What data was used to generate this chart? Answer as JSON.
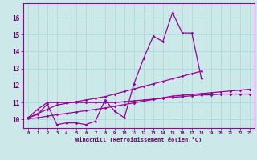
{
  "xlabel": "Windchill (Refroidissement éolien,°C)",
  "x": [
    0,
    1,
    2,
    3,
    4,
    5,
    6,
    7,
    8,
    9,
    10,
    11,
    12,
    13,
    14,
    15,
    16,
    17,
    18,
    19,
    20,
    21,
    22,
    23
  ],
  "line1_x": [
    0,
    1,
    2,
    3,
    4,
    5,
    6,
    7,
    8,
    9,
    10,
    11,
    12,
    13,
    14,
    15,
    16,
    17,
    18
  ],
  "line1_y": [
    10.1,
    10.3,
    10.9,
    9.7,
    9.8,
    9.8,
    9.7,
    9.9,
    11.15,
    10.5,
    10.1,
    12.1,
    13.6,
    14.9,
    14.6,
    16.3,
    15.1,
    15.1,
    12.4
  ],
  "line2_x": [
    0,
    1,
    2,
    3,
    4,
    5,
    6,
    7,
    8,
    9,
    10,
    11,
    12,
    13,
    14,
    15,
    16,
    17,
    18,
    19,
    20,
    21,
    22,
    23
  ],
  "line2_y": [
    10.1,
    10.6,
    11.0,
    11.0,
    11.0,
    11.0,
    11.0,
    11.0,
    11.0,
    11.0,
    11.05,
    11.1,
    11.15,
    11.2,
    11.25,
    11.3,
    11.35,
    11.4,
    11.45,
    11.45,
    11.5,
    11.5,
    11.5,
    11.5
  ],
  "line3_x": [
    0,
    1,
    2,
    3,
    4,
    5,
    6,
    7,
    8,
    9,
    10,
    11,
    12,
    13,
    14,
    15,
    16,
    17,
    18
  ],
  "line3_y": [
    10.1,
    10.35,
    10.6,
    10.85,
    10.95,
    11.05,
    11.15,
    11.25,
    11.35,
    11.5,
    11.65,
    11.8,
    11.95,
    12.1,
    12.25,
    12.4,
    12.55,
    12.7,
    12.85
  ],
  "line4_x": [
    0,
    1,
    2,
    3,
    4,
    5,
    6,
    7,
    8,
    9,
    10,
    11,
    12,
    13,
    14,
    15,
    16,
    17,
    18,
    19,
    20,
    21,
    22,
    23
  ],
  "line4_y": [
    10.05,
    10.1,
    10.2,
    10.28,
    10.36,
    10.44,
    10.52,
    10.6,
    10.68,
    10.78,
    10.88,
    10.98,
    11.08,
    11.18,
    11.28,
    11.38,
    11.43,
    11.48,
    11.53,
    11.58,
    11.63,
    11.68,
    11.73,
    11.78
  ],
  "line_color": "#990099",
  "bg_color": "#cce8e8",
  "grid_color": "#aadddd",
  "ylim": [
    9.5,
    16.7
  ],
  "yticks": [
    10,
    11,
    12,
    13,
    14,
    15,
    16
  ],
  "xticks": [
    0,
    1,
    2,
    3,
    4,
    5,
    6,
    7,
    8,
    9,
    10,
    11,
    12,
    13,
    14,
    15,
    16,
    17,
    18,
    19,
    20,
    21,
    22,
    23
  ]
}
